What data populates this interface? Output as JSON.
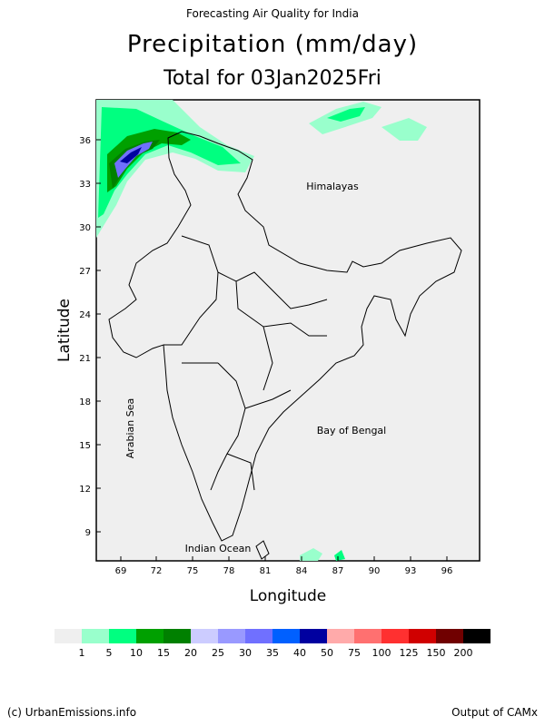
{
  "header": {
    "top": "Forecasting Air Quality for India",
    "title": "Precipitation (mm/day)",
    "subtitle": "Total for 03Jan2025Fri"
  },
  "map": {
    "xlabel": "Longitude",
    "ylabel": "Latitude",
    "x_ticks": [
      "69",
      "72",
      "75",
      "78",
      "81",
      "84",
      "87",
      "90",
      "93",
      "96"
    ],
    "y_ticks": [
      "36",
      "33",
      "30",
      "27",
      "24",
      "21",
      "18",
      "15",
      "12",
      "9"
    ],
    "labels": {
      "himalayas": "Himalayas",
      "bay_of_bengal": "Bay of Bengal",
      "arabian_sea": "Arabian Sea",
      "indian_ocean": "Indian Ocean"
    },
    "background_color": "#efefef"
  },
  "colorbar": {
    "colors": [
      "#efefef",
      "#99ffcc",
      "#00ff80",
      "#00a000",
      "#008000",
      "#ccccff",
      "#9999ff",
      "#7070ff",
      "#0060ff",
      "#0000a0",
      "#ffaaaa",
      "#ff7070",
      "#ff3030",
      "#d00000",
      "#700000",
      "#000000"
    ],
    "labels": [
      "1",
      "5",
      "10",
      "15",
      "20",
      "25",
      "30",
      "35",
      "40",
      "50",
      "75",
      "100",
      "125",
      "150",
      "200"
    ]
  },
  "footer": {
    "left": "(c) UrbanEmissions.info",
    "right": "Output of CAMx"
  }
}
